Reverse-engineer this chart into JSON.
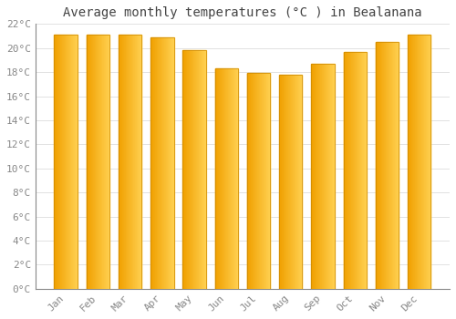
{
  "title": "Average monthly temperatures (°C ) in Bealanana",
  "months": [
    "Jan",
    "Feb",
    "Mar",
    "Apr",
    "May",
    "Jun",
    "Jul",
    "Aug",
    "Sep",
    "Oct",
    "Nov",
    "Dec"
  ],
  "values": [
    21.1,
    21.1,
    21.1,
    20.9,
    19.8,
    18.3,
    17.9,
    17.8,
    18.7,
    19.7,
    20.5,
    21.1
  ],
  "bar_color_light": "#FFD050",
  "bar_color_dark": "#F0A000",
  "bar_edge_color": "#CC8800",
  "background_color": "#FFFFFF",
  "plot_bg_color": "#FFFFFF",
  "grid_color": "#DDDDDD",
  "ylim": [
    0,
    22
  ],
  "yticks": [
    0,
    2,
    4,
    6,
    8,
    10,
    12,
    14,
    16,
    18,
    20,
    22
  ],
  "title_fontsize": 10,
  "tick_fontsize": 8,
  "title_color": "#444444",
  "tick_color": "#888888",
  "bar_width": 0.72
}
